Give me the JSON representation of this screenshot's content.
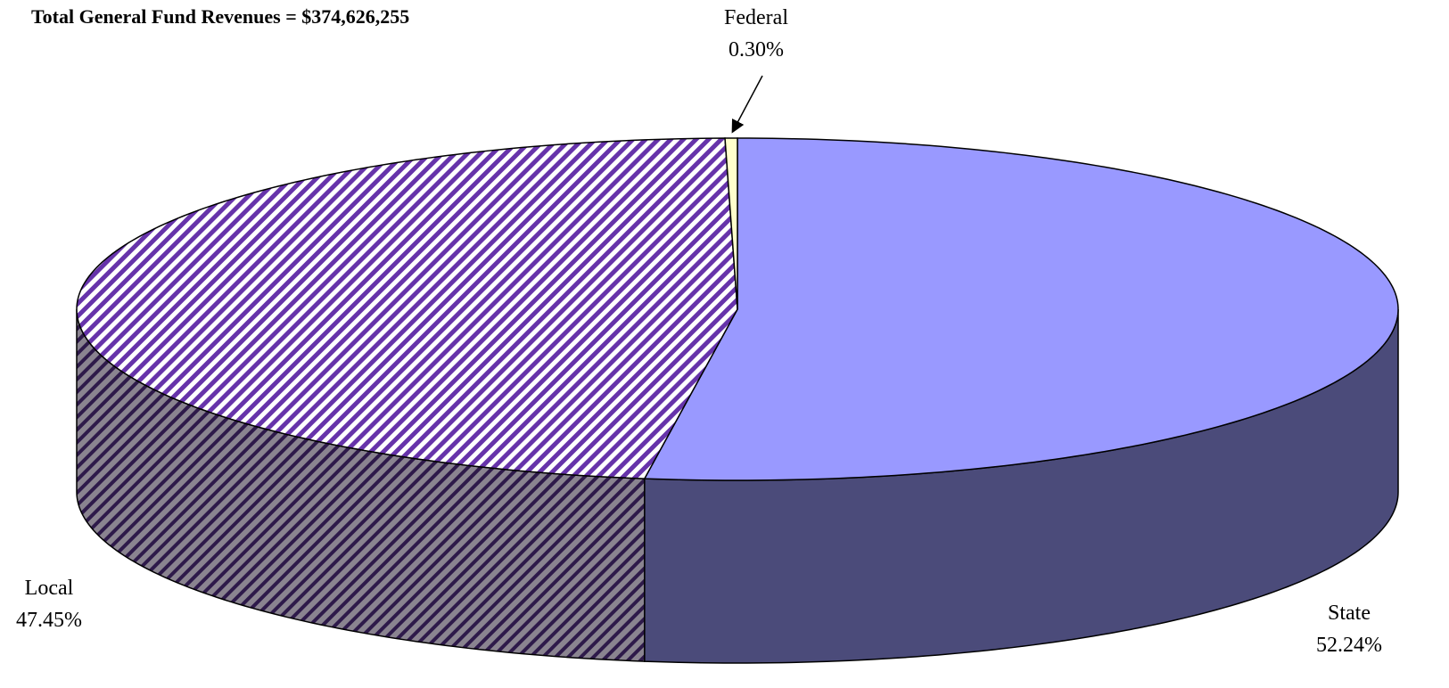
{
  "chart_data": {
    "type": "pie3d",
    "title": "Total General Fund Revenues = $374,626,255",
    "categories": [
      "State",
      "Local",
      "Federal"
    ],
    "values": [
      52.24,
      47.45,
      0.3
    ],
    "value_labels": [
      "52.24%",
      "47.45%",
      "0.30%"
    ],
    "colors": [
      "#9999ff",
      "#6633aa",
      "#ffffcc"
    ]
  }
}
